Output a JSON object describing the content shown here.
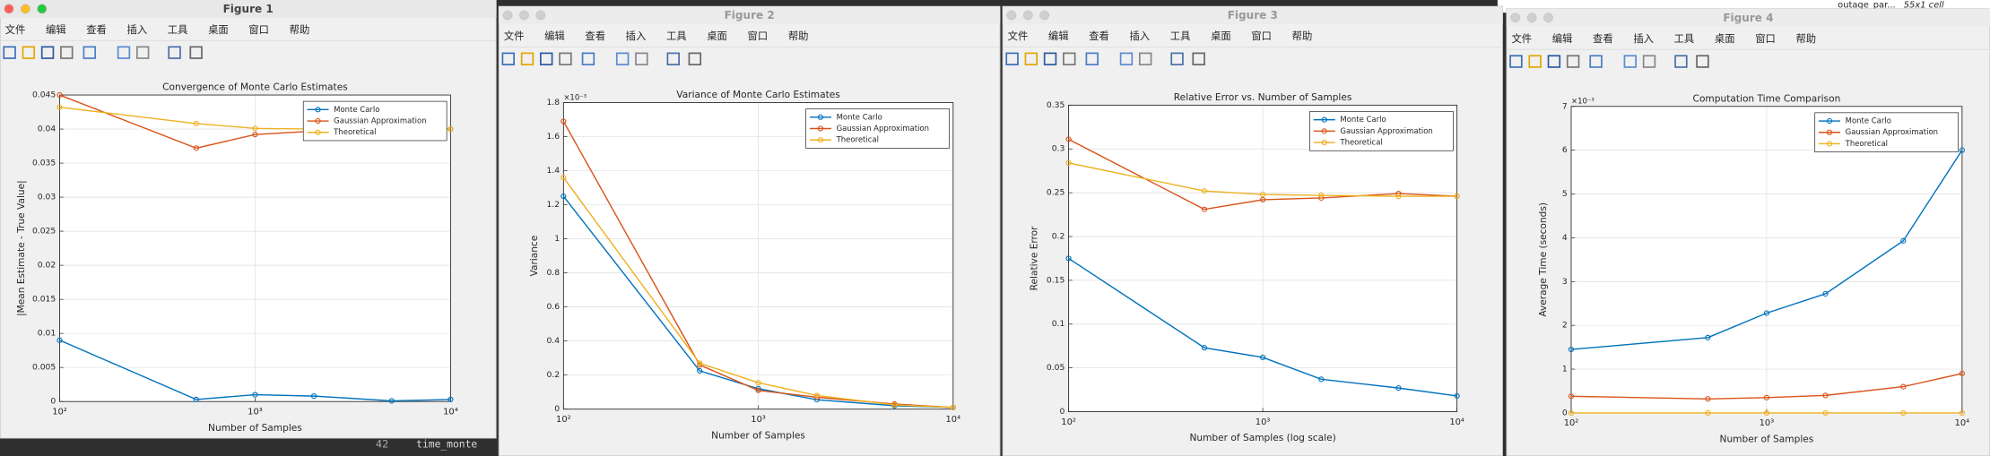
{
  "windows": [
    {
      "title": "Figure 1"
    },
    {
      "title": "Figure 2"
    },
    {
      "title": "Figure 3"
    },
    {
      "title": "Figure 4"
    }
  ],
  "menu": [
    "文件",
    "编辑",
    "查看",
    "插入",
    "工具",
    "桌面",
    "窗口",
    "帮助"
  ],
  "background": {
    "variable": "outage_par...",
    "size": "55x1 cell",
    "line_number": "42",
    "code": "time_monte"
  },
  "chart_data": [
    {
      "type": "line",
      "title": "Convergence of Monte Carlo Estimates",
      "x_label": "Number of Samples",
      "y_label": "|Mean Estimate - True Value|",
      "x_scale": "log",
      "xlim": [
        100,
        10000
      ],
      "xticks": [
        {
          "value": 100,
          "label": "10²"
        },
        {
          "value": 1000,
          "label": "10³"
        },
        {
          "value": 10000,
          "label": "10⁴"
        }
      ],
      "ylim": [
        0,
        0.045
      ],
      "yticks": [
        0,
        0.005,
        0.01,
        0.015,
        0.02,
        0.025,
        0.03,
        0.035,
        0.04,
        0.045
      ],
      "grid": true,
      "legend": "upper right",
      "x": [
        100,
        500,
        1000,
        2000,
        5000,
        10000
      ],
      "series": [
        {
          "name": "Monte Carlo",
          "color": "#0072BD",
          "values": [
            0.009,
            0.0003,
            0.001,
            0.0008,
            0.0001,
            0.0003
          ]
        },
        {
          "name": "Gaussian Approximation",
          "color": "#D95319",
          "values": [
            0.045,
            0.0372,
            0.0392,
            0.0397,
            0.04,
            0.04
          ]
        },
        {
          "name": "Theoretical",
          "color": "#EDB120",
          "values": [
            0.0432,
            0.0408,
            0.0401,
            0.04,
            0.04,
            0.04
          ]
        }
      ]
    },
    {
      "type": "line",
      "title": "Variance of Monte Carlo Estimates",
      "x_label": "Number of Samples",
      "y_label": "Variance",
      "y_multiplier": "×10⁻³",
      "x_scale": "log",
      "xlim": [
        100,
        10000
      ],
      "xticks": [
        {
          "value": 100,
          "label": "10²"
        },
        {
          "value": 1000,
          "label": "10³"
        },
        {
          "value": 10000,
          "label": "10⁴"
        }
      ],
      "ylim": [
        0,
        1.8
      ],
      "yticks": [
        0,
        0.2,
        0.4,
        0.6,
        0.8,
        1,
        1.2,
        1.4,
        1.6,
        1.8
      ],
      "grid": true,
      "legend": "upper right",
      "x": [
        100,
        500,
        1000,
        2000,
        5000,
        10000
      ],
      "series": [
        {
          "name": "Monte Carlo",
          "color": "#0072BD",
          "values": [
            1.25,
            0.225,
            0.12,
            0.055,
            0.02,
            0.01
          ]
        },
        {
          "name": "Gaussian Approximation",
          "color": "#D95319",
          "values": [
            1.69,
            0.26,
            0.11,
            0.07,
            0.03,
            0.01
          ]
        },
        {
          "name": "Theoretical",
          "color": "#EDB120",
          "values": [
            1.36,
            0.27,
            0.155,
            0.08,
            0.025,
            0.01
          ]
        }
      ]
    },
    {
      "type": "line",
      "title": "Relative Error vs. Number of Samples",
      "x_label": "Number of Samples (log scale)",
      "y_label": "Relative Error",
      "x_scale": "log",
      "xlim": [
        100,
        10000
      ],
      "xticks": [
        {
          "value": 100,
          "label": "10²"
        },
        {
          "value": 1000,
          "label": "10³"
        },
        {
          "value": 10000,
          "label": "10⁴"
        }
      ],
      "ylim": [
        0,
        0.35
      ],
      "yticks": [
        0,
        0.05,
        0.1,
        0.15,
        0.2,
        0.25,
        0.3,
        0.35
      ],
      "grid": true,
      "legend": "upper right",
      "x": [
        100,
        500,
        1000,
        2000,
        5000,
        10000
      ],
      "series": [
        {
          "name": "Monte Carlo",
          "color": "#0072BD",
          "values": [
            0.175,
            0.073,
            0.062,
            0.037,
            0.027,
            0.018
          ]
        },
        {
          "name": "Gaussian Approximation",
          "color": "#D95319",
          "values": [
            0.311,
            0.231,
            0.242,
            0.244,
            0.249,
            0.246
          ]
        },
        {
          "name": "Theoretical",
          "color": "#EDB120",
          "values": [
            0.284,
            0.252,
            0.248,
            0.247,
            0.246,
            0.246
          ]
        }
      ]
    },
    {
      "type": "line",
      "title": "Computation Time Comparison",
      "x_label": "Number of Samples",
      "y_label": "Average Time (seconds)",
      "y_multiplier": "×10⁻³",
      "x_scale": "log",
      "xlim": [
        100,
        10000
      ],
      "xticks": [
        {
          "value": 100,
          "label": "10²"
        },
        {
          "value": 1000,
          "label": "10³"
        },
        {
          "value": 10000,
          "label": "10⁴"
        }
      ],
      "ylim": [
        0,
        7
      ],
      "yticks": [
        0,
        1,
        2,
        3,
        4,
        5,
        6,
        7
      ],
      "grid": true,
      "legend": "upper right",
      "x": [
        100,
        500,
        1000,
        2000,
        5000,
        10000
      ],
      "series": [
        {
          "name": "Monte Carlo",
          "color": "#0072BD",
          "values": [
            1.45,
            1.72,
            2.28,
            2.72,
            3.93,
            6.0
          ]
        },
        {
          "name": "Gaussian Approximation",
          "color": "#D95319",
          "values": [
            0.38,
            0.32,
            0.35,
            0.4,
            0.6,
            0.9
          ]
        },
        {
          "name": "Theoretical",
          "color": "#EDB120",
          "values": [
            0,
            0,
            0,
            0,
            0,
            0
          ]
        }
      ]
    }
  ]
}
